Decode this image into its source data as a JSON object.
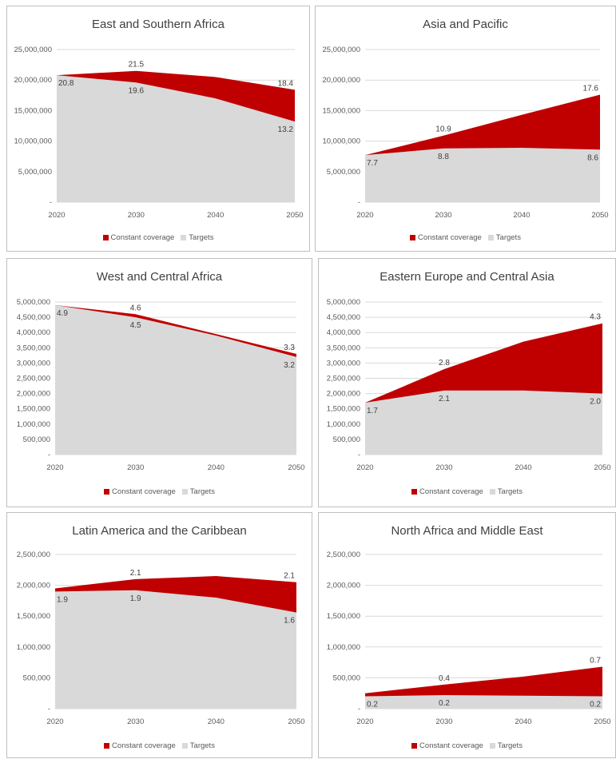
{
  "colors": {
    "constant": "#c00000",
    "targets": "#d9d9d9",
    "grid": "#d9d9d9",
    "text": "#595959"
  },
  "legend": {
    "constant_label": "Constant coverage",
    "targets_label": "Targets"
  },
  "chart_data": [
    {
      "type": "area",
      "title": "East and Southern Africa",
      "x": [
        "2020",
        "2030",
        "2040",
        "2050"
      ],
      "ylim": [
        0,
        25000000
      ],
      "yticks": [
        "-",
        "5,000,000",
        "10,000,000",
        "15,000,000",
        "20,000,000",
        "25,000,000"
      ],
      "series": [
        {
          "name": "Constant coverage",
          "values": [
            20800000,
            21500000,
            20500000,
            18400000
          ],
          "labels": [
            "",
            "21.5",
            "",
            "18.4"
          ]
        },
        {
          "name": "Targets",
          "values": [
            20800000,
            19600000,
            17000000,
            13200000
          ],
          "labels": [
            "20.8",
            "19.6",
            "",
            "13.2"
          ]
        }
      ]
    },
    {
      "type": "area",
      "title": "Asia and Pacific",
      "x": [
        "2020",
        "2030",
        "2040",
        "2050"
      ],
      "ylim": [
        0,
        25000000
      ],
      "yticks": [
        "-",
        "5,000,000",
        "10,000,000",
        "15,000,000",
        "20,000,000",
        "25,000,000"
      ],
      "series": [
        {
          "name": "Constant coverage",
          "values": [
            7700000,
            10900000,
            14300000,
            17600000
          ],
          "labels": [
            "",
            "10.9",
            "",
            "17.6"
          ]
        },
        {
          "name": "Targets",
          "values": [
            7700000,
            8800000,
            8900000,
            8600000
          ],
          "labels": [
            "7.7",
            "8.8",
            "",
            "8.6"
          ]
        }
      ]
    },
    {
      "type": "area",
      "title": "West and Central Africa",
      "x": [
        "2020",
        "2030",
        "2040",
        "2050"
      ],
      "ylim": [
        0,
        5000000
      ],
      "yticks": [
        "-",
        "500,000",
        "1,000,000",
        "1,500,000",
        "2,000,000",
        "2,500,000",
        "3,000,000",
        "3,500,000",
        "4,000,000",
        "4,500,000",
        "5,000,000"
      ],
      "series": [
        {
          "name": "Constant coverage",
          "values": [
            4900000,
            4600000,
            3950000,
            3300000
          ],
          "labels": [
            "",
            "4.6",
            "",
            "3.3"
          ]
        },
        {
          "name": "Targets",
          "values": [
            4900000,
            4500000,
            3900000,
            3200000
          ],
          "labels": [
            "4.9",
            "4.5",
            "",
            "3.2"
          ]
        }
      ]
    },
    {
      "type": "area",
      "title": "Eastern Europe and Central Asia",
      "x": [
        "2020",
        "2030",
        "2040",
        "2050"
      ],
      "ylim": [
        0,
        5000000
      ],
      "yticks": [
        "-",
        "500,000",
        "1,000,000",
        "1,500,000",
        "2,000,000",
        "2,500,000",
        "3,000,000",
        "3,500,000",
        "4,000,000",
        "4,500,000",
        "5,000,000"
      ],
      "series": [
        {
          "name": "Constant coverage",
          "values": [
            1700000,
            2800000,
            3700000,
            4300000
          ],
          "labels": [
            "",
            "2.8",
            "",
            "4.3"
          ]
        },
        {
          "name": "Targets",
          "values": [
            1700000,
            2100000,
            2100000,
            2000000
          ],
          "labels": [
            "1.7",
            "2.1",
            "",
            "2.0"
          ]
        }
      ]
    },
    {
      "type": "area",
      "title": "Latin America and the Caribbean",
      "x": [
        "2020",
        "2030",
        "2040",
        "2050"
      ],
      "ylim": [
        0,
        2500000
      ],
      "yticks": [
        "-",
        "500,000",
        "1,000,000",
        "1,500,000",
        "2,000,000",
        "2,500,000"
      ],
      "series": [
        {
          "name": "Constant coverage",
          "values": [
            1950000,
            2100000,
            2150000,
            2050000
          ],
          "labels": [
            "",
            "2.1",
            "",
            "2.1"
          ]
        },
        {
          "name": "Targets",
          "values": [
            1900000,
            1920000,
            1800000,
            1560000
          ],
          "labels": [
            "1.9",
            "1.9",
            "",
            "1.6"
          ]
        }
      ]
    },
    {
      "type": "area",
      "title": "North Africa and Middle East",
      "x": [
        "2020",
        "2030",
        "2040",
        "2050"
      ],
      "ylim": [
        0,
        2500000
      ],
      "yticks": [
        "-",
        "500,000",
        "1,000,000",
        "1,500,000",
        "2,000,000",
        "2,500,000"
      ],
      "series": [
        {
          "name": "Constant coverage",
          "values": [
            250000,
            390000,
            520000,
            680000
          ],
          "labels": [
            "",
            "0.4",
            "",
            "0.7"
          ]
        },
        {
          "name": "Targets",
          "values": [
            200000,
            220000,
            210000,
            200000
          ],
          "labels": [
            "0.2",
            "0.2",
            "",
            "0.2"
          ]
        }
      ]
    }
  ]
}
